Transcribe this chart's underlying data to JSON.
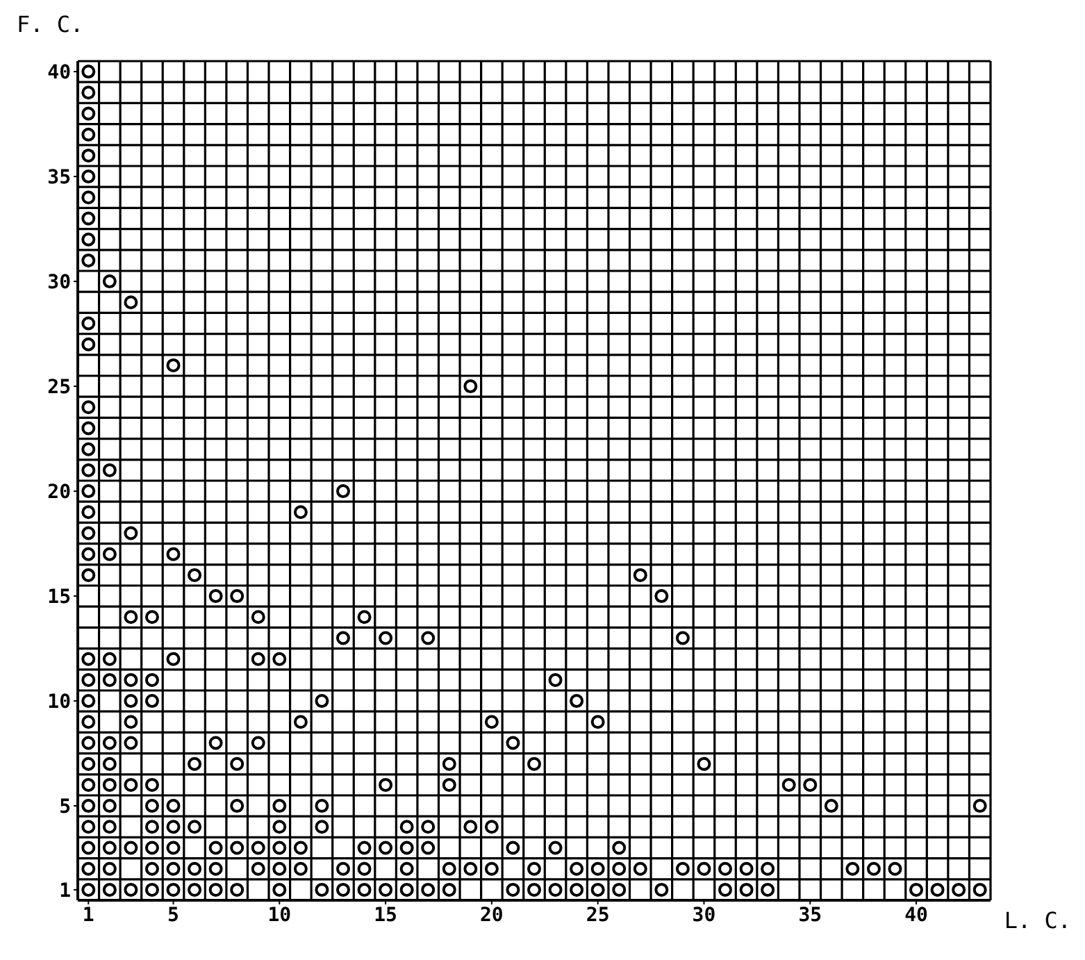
{
  "chart_data": {
    "type": "scatter",
    "xlabel": "L. C.",
    "ylabel": "F. C.",
    "xlim": [
      0.5,
      43.5
    ],
    "ylim": [
      0.5,
      40.5
    ],
    "xticks": [
      1,
      5,
      10,
      15,
      20,
      25,
      30,
      35,
      40
    ],
    "yticks": [
      1,
      5,
      10,
      15,
      20,
      25,
      30,
      35,
      40
    ],
    "grid": true,
    "marker": "circle",
    "legend": false,
    "series": [
      {
        "color": "#000000",
        "x": [
          1,
          1,
          1,
          1,
          1,
          1,
          1,
          1,
          1,
          1,
          1,
          1,
          1,
          1,
          1,
          1,
          1,
          1,
          1,
          1,
          1,
          1,
          1,
          1,
          1,
          1,
          1,
          1,
          1,
          1,
          1,
          1,
          1,
          2,
          2,
          2,
          2,
          2,
          2,
          2,
          2,
          2,
          2,
          2,
          2,
          2,
          3,
          3,
          3,
          3,
          3,
          3,
          3,
          3,
          3,
          3,
          4,
          4,
          4,
          4,
          4,
          4,
          4,
          4,
          4,
          5,
          5,
          5,
          5,
          5,
          5,
          5,
          5,
          6,
          6,
          6,
          6,
          6,
          7,
          7,
          7,
          7,
          7,
          8,
          8,
          8,
          8,
          8,
          9,
          9,
          9,
          9,
          9,
          10,
          10,
          10,
          10,
          10,
          10,
          11,
          11,
          11,
          11,
          12,
          12,
          12,
          12,
          13,
          13,
          13,
          13,
          14,
          14,
          14,
          14,
          15,
          15,
          15,
          15,
          16,
          16,
          16,
          16,
          17,
          17,
          17,
          17,
          18,
          18,
          18,
          18,
          19,
          19,
          19,
          20,
          20,
          20,
          21,
          21,
          21,
          22,
          22,
          22,
          23,
          23,
          23,
          24,
          24,
          24,
          25,
          25,
          25,
          26,
          26,
          26,
          27,
          27,
          28,
          28,
          29,
          29,
          30,
          30,
          31,
          31,
          32,
          32,
          33,
          33,
          34,
          35,
          36,
          37,
          38,
          39,
          40,
          41,
          42,
          43,
          43
        ],
        "values": [
          1,
          2,
          3,
          4,
          5,
          6,
          7,
          8,
          9,
          10,
          11,
          12,
          16,
          17,
          18,
          19,
          20,
          21,
          22,
          23,
          24,
          27,
          28,
          31,
          32,
          33,
          34,
          35,
          36,
          37,
          38,
          39,
          40,
          30,
          21,
          17,
          12,
          11,
          8,
          7,
          6,
          5,
          4,
          3,
          2,
          1,
          29,
          18,
          14,
          11,
          10,
          9,
          8,
          6,
          3,
          1,
          14,
          11,
          10,
          6,
          5,
          4,
          3,
          2,
          1,
          26,
          17,
          12,
          5,
          4,
          3,
          2,
          1,
          16,
          7,
          4,
          2,
          1,
          15,
          8,
          3,
          2,
          1,
          15,
          7,
          5,
          3,
          1,
          14,
          12,
          8,
          3,
          2,
          12,
          5,
          4,
          3,
          2,
          1,
          19,
          9,
          3,
          2,
          10,
          5,
          4,
          1,
          20,
          13,
          2,
          1,
          14,
          3,
          2,
          1,
          13,
          6,
          3,
          1,
          4,
          3,
          2,
          1,
          13,
          4,
          3,
          1,
          7,
          6,
          2,
          1,
          25,
          4,
          2,
          9,
          4,
          2,
          8,
          3,
          1,
          7,
          2,
          1,
          11,
          3,
          1,
          10,
          2,
          1,
          9,
          2,
          1,
          3,
          2,
          1,
          16,
          2,
          15,
          1,
          13,
          2,
          7,
          2,
          2,
          1,
          2,
          1,
          2,
          1,
          6,
          6,
          5,
          2,
          2,
          2,
          1,
          1,
          1,
          1,
          5
        ]
      }
    ]
  }
}
